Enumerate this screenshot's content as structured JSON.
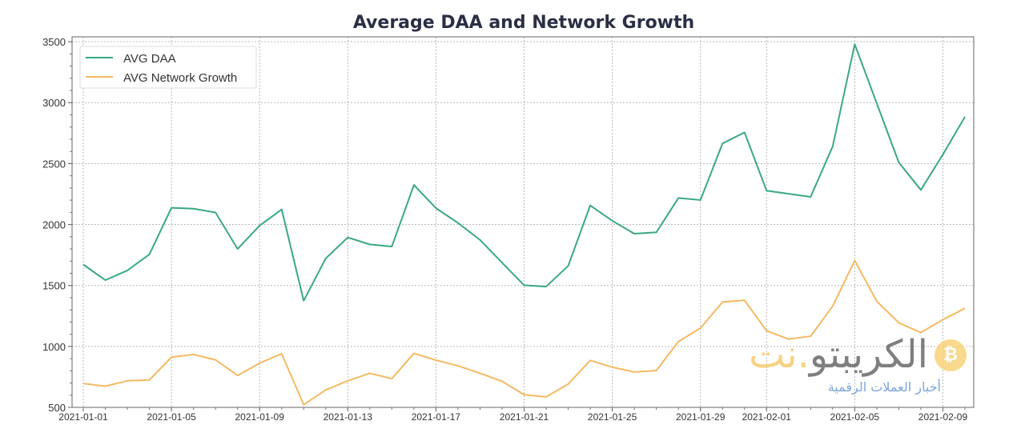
{
  "chart_data": {
    "type": "line",
    "title": "Average DAA and Network Growth",
    "xlabel": "",
    "ylabel": "",
    "x": [
      "2021-01-01",
      "2021-01-02",
      "2021-01-03",
      "2021-01-04",
      "2021-01-05",
      "2021-01-06",
      "2021-01-07",
      "2021-01-08",
      "2021-01-09",
      "2021-01-10",
      "2021-01-11",
      "2021-01-12",
      "2021-01-13",
      "2021-01-14",
      "2021-01-15",
      "2021-01-16",
      "2021-01-17",
      "2021-01-18",
      "2021-01-19",
      "2021-01-20",
      "2021-01-21",
      "2021-01-22",
      "2021-01-23",
      "2021-01-24",
      "2021-01-25",
      "2021-01-26",
      "2021-01-27",
      "2021-01-28",
      "2021-01-29",
      "2021-01-30",
      "2021-01-31",
      "2021-02-01",
      "2021-02-02",
      "2021-02-03",
      "2021-02-04",
      "2021-02-05",
      "2021-02-06",
      "2021-02-07",
      "2021-02-08",
      "2021-02-09",
      "2021-02-10"
    ],
    "series": [
      {
        "name": "AVG DAA",
        "color": "#3aa884",
        "values": [
          1672,
          1544,
          1623,
          1755,
          2137,
          2130,
          2099,
          1800,
          1991,
          2124,
          1375,
          1722,
          1894,
          1837,
          1820,
          2324,
          2135,
          2013,
          1874,
          1687,
          1502,
          1491,
          1661,
          2157,
          2031,
          1925,
          1936,
          2218,
          2201,
          2664,
          2756,
          2278,
          2252,
          2227,
          2641,
          3479,
          2994,
          2509,
          2284,
          2575,
          2884
        ]
      },
      {
        "name": "AVG Network Growth",
        "color": "#f5b963",
        "values": [
          696,
          674,
          718,
          725,
          912,
          934,
          890,
          762,
          863,
          940,
          522,
          643,
          718,
          780,
          736,
          943,
          887,
          841,
          780,
          714,
          604,
          586,
          691,
          885,
          830,
          790,
          802,
          1040,
          1150,
          1364,
          1379,
          1128,
          1060,
          1084,
          1331,
          1705,
          1370,
          1194,
          1114,
          1220,
          1313
        ]
      }
    ],
    "xticks": [
      "2021-01-01",
      "2021-01-05",
      "2021-01-09",
      "2021-01-13",
      "2021-01-17",
      "2021-01-21",
      "2021-01-25",
      "2021-01-29",
      "2021-02-01",
      "2021-02-05",
      "2021-02-09"
    ],
    "yticks": [
      500,
      1000,
      1500,
      2000,
      2500,
      3000,
      3500
    ],
    "ylim": [
      500,
      3540
    ],
    "xlim": [
      "2021-01-01",
      "2021-02-10"
    ],
    "grid": true,
    "legend": "top-left"
  },
  "watermark": {
    "name_part1": "الكريبتو",
    "name_part2": ".نت",
    "tagline": "أخبار العملات الرقمية",
    "coin_symbol": "₿"
  }
}
